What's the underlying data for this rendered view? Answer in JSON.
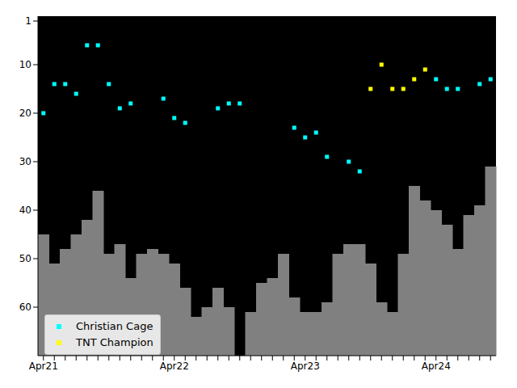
{
  "chart_data": {
    "type": "bar",
    "categories": [
      "Apr21",
      null,
      null,
      null,
      null,
      null,
      null,
      null,
      null,
      null,
      null,
      null,
      "Apr22",
      null,
      null,
      null,
      null,
      null,
      null,
      null,
      null,
      null,
      null,
      null,
      "Apr23",
      null,
      null,
      null,
      null,
      null,
      null,
      null,
      null,
      null,
      null,
      null,
      "Apr24",
      null,
      null,
      null,
      null,
      null
    ],
    "series": [
      {
        "type": "bar",
        "color": "#808080",
        "values": [
          45,
          51,
          48,
          45,
          42,
          36,
          49,
          47,
          54,
          49,
          48,
          49,
          51,
          56,
          62,
          60,
          56,
          60,
          null,
          61,
          55,
          54,
          49,
          58,
          61,
          61,
          59,
          49,
          47,
          47,
          51,
          59,
          61,
          49,
          35,
          38,
          40,
          43,
          48,
          41,
          39,
          31
        ]
      },
      {
        "name": "Christian Cage",
        "type": "scatter",
        "marker": "square",
        "color": "#00ffff",
        "values": [
          20,
          14,
          14,
          16,
          6,
          6,
          14,
          19,
          18,
          null,
          null,
          17,
          21,
          22,
          null,
          null,
          19,
          18,
          18,
          null,
          null,
          null,
          null,
          23,
          25,
          24,
          29,
          null,
          30,
          32,
          null,
          null,
          null,
          null,
          null,
          null,
          13,
          15,
          15,
          null,
          14,
          13
        ]
      },
      {
        "name": "TNT Champion",
        "type": "scatter",
        "marker": "square",
        "color": "#ffff00",
        "values": [
          null,
          null,
          null,
          null,
          null,
          null,
          null,
          null,
          null,
          null,
          null,
          null,
          null,
          null,
          null,
          null,
          null,
          null,
          null,
          null,
          null,
          null,
          null,
          null,
          null,
          null,
          null,
          null,
          null,
          null,
          15,
          10,
          15,
          15,
          13,
          11,
          null,
          null,
          null,
          null,
          null,
          null
        ]
      }
    ],
    "ylim": [
      70,
      0
    ],
    "yticks": [
      1,
      10,
      20,
      30,
      40,
      50,
      60
    ],
    "legend": "lower left"
  }
}
